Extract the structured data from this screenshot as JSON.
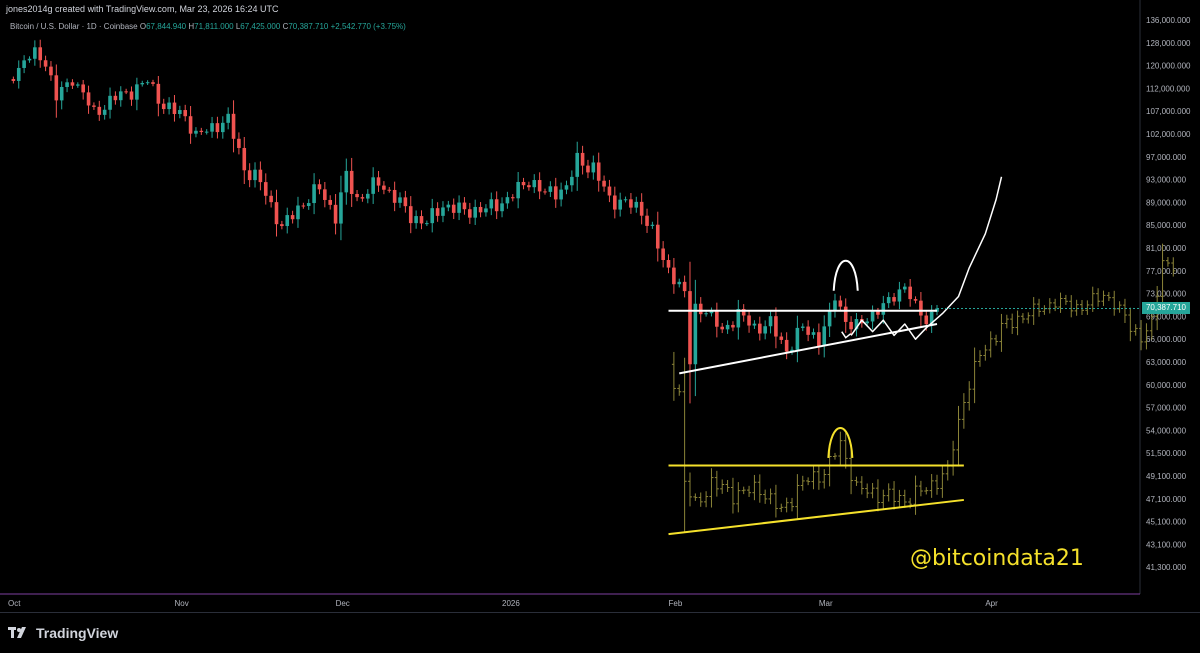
{
  "header": {
    "creator": "jones2014g created with TradingView.com, Mar 23, 2026 16:24 UTC",
    "symbol": "Bitcoin / U.S. Dollar · 1D · Coinbase",
    "open_label": "O",
    "open": "67,844.940",
    "high_label": "H",
    "high": "71,811.000",
    "low_label": "L",
    "low": "67,425.000",
    "close_label": "C",
    "close": "70,387.710",
    "change": "+2,542.770 (+3.75%)"
  },
  "price_tag": "70,387.710",
  "watermark": "@bitcoindata21",
  "footer": {
    "brand": "TradingView"
  },
  "colors": {
    "up": "#26a69a",
    "down": "#ef5350",
    "overlay": "#8b8438",
    "annotation_yellow": "#f5e12b",
    "background": "#000000"
  },
  "chart_data": {
    "type": "candlestick",
    "title": "Bitcoin / U.S. Dollar · 1D · Coinbase",
    "y_ticks": [
      "136,000.000",
      "128,000.000",
      "120,000.000",
      "112,000.000",
      "107,000.000",
      "102,000.000",
      "97,000.000",
      "93,000.000",
      "89,000.000",
      "85,000.000",
      "81,000.000",
      "77,000.000",
      "73,000.000",
      "69,000.000",
      "66,000.000",
      "63,000.000",
      "60,000.000",
      "57,000.000",
      "54,000.000",
      "51,500.000",
      "49,100.000",
      "47,100.000",
      "45,100.000",
      "43,100.000",
      "41,300.000"
    ],
    "x_ticks": [
      "Oct",
      "Nov",
      "Dec",
      "2026",
      "Feb",
      "Mar",
      "Apr"
    ],
    "price_path": [
      [
        "2025-10-01",
        114000
      ],
      [
        "2025-10-04",
        121500
      ],
      [
        "2025-10-06",
        124500
      ],
      [
        "2025-10-08",
        121000
      ],
      [
        "2025-10-10",
        110000
      ],
      [
        "2025-10-13",
        115000
      ],
      [
        "2025-10-17",
        106500
      ],
      [
        "2025-10-21",
        110000
      ],
      [
        "2025-10-24",
        111500
      ],
      [
        "2025-10-27",
        114500
      ],
      [
        "2025-10-30",
        108000
      ],
      [
        "2025-11-03",
        106000
      ],
      [
        "2025-11-05",
        101500
      ],
      [
        "2025-11-08",
        103500
      ],
      [
        "2025-11-11",
        105000
      ],
      [
        "2025-11-14",
        95000
      ],
      [
        "2025-11-17",
        92500
      ],
      [
        "2025-11-21",
        84500
      ],
      [
        "2025-11-24",
        88000
      ],
      [
        "2025-11-28",
        91500
      ],
      [
        "2025-12-01",
        86500
      ],
      [
        "2025-12-03",
        93500
      ],
      [
        "2025-12-05",
        89500
      ],
      [
        "2025-12-09",
        92500
      ],
      [
        "2025-12-12",
        90000
      ],
      [
        "2025-12-15",
        86500
      ],
      [
        "2025-12-18",
        85500
      ],
      [
        "2025-12-21",
        88500
      ],
      [
        "2025-12-25",
        87500
      ],
      [
        "2025-12-29",
        87800
      ],
      [
        "2026-01-02",
        89500
      ],
      [
        "2026-01-06",
        93000
      ],
      [
        "2026-01-09",
        90500
      ],
      [
        "2026-01-13",
        91500
      ],
      [
        "2026-01-15",
        96500
      ],
      [
        "2026-01-18",
        95000
      ],
      [
        "2026-01-21",
        89500
      ],
      [
        "2026-01-24",
        89000
      ],
      [
        "2026-01-27",
        87500
      ],
      [
        "2026-01-29",
        84000
      ],
      [
        "2026-01-31",
        78500
      ],
      [
        "2026-02-02",
        76000
      ],
      [
        "2026-02-04",
        73000
      ],
      [
        "2026-02-05",
        63000
      ],
      [
        "2026-02-06",
        70500
      ],
      [
        "2026-02-08",
        70000
      ],
      [
        "2026-02-11",
        67000
      ],
      [
        "2026-02-14",
        69500
      ],
      [
        "2026-02-17",
        67500
      ],
      [
        "2026-02-20",
        68000
      ],
      [
        "2026-02-23",
        64500
      ],
      [
        "2026-02-26",
        67500
      ],
      [
        "2026-03-01",
        66000
      ],
      [
        "2026-03-03",
        69000
      ],
      [
        "2026-03-04",
        72500
      ],
      [
        "2026-03-06",
        68500
      ],
      [
        "2026-03-08",
        67500
      ],
      [
        "2026-03-11",
        69500
      ],
      [
        "2026-03-14",
        71500
      ],
      [
        "2026-03-17",
        74500
      ],
      [
        "2026-03-19",
        70500
      ],
      [
        "2026-03-21",
        68500
      ],
      [
        "2026-03-23",
        70387.71
      ]
    ],
    "overlay_fractal_path": [
      [
        "2026-02-01",
        62000
      ],
      [
        "2026-02-03",
        59000
      ],
      [
        "2026-02-04",
        48500
      ],
      [
        "2026-02-06",
        46500
      ],
      [
        "2026-02-09",
        48500
      ],
      [
        "2026-02-13",
        47500
      ],
      [
        "2026-02-18",
        48000
      ],
      [
        "2026-02-22",
        46000
      ],
      [
        "2026-02-26",
        48500
      ],
      [
        "2026-03-02",
        49500
      ],
      [
        "2026-03-05",
        52500
      ],
      [
        "2026-03-08",
        48000
      ],
      [
        "2026-03-12",
        47500
      ],
      [
        "2026-03-17",
        47000
      ],
      [
        "2026-03-21",
        48000
      ],
      [
        "2026-03-25",
        49500
      ],
      [
        "2026-03-28",
        58000
      ],
      [
        "2026-03-31",
        64000
      ],
      [
        "2026-04-04",
        67500
      ],
      [
        "2026-04-09",
        69500
      ],
      [
        "2026-04-14",
        71500
      ],
      [
        "2026-04-19",
        70500
      ],
      [
        "2026-04-23",
        73000
      ],
      [
        "2026-04-27",
        69000
      ],
      [
        "2026-04-30",
        66000
      ],
      [
        "2026-05-02",
        68000
      ],
      [
        "2026-05-04",
        79000
      ],
      [
        "2026-05-06",
        77000
      ]
    ],
    "annotations": [
      {
        "kind": "horizontal_line",
        "color": "white",
        "price": 70000,
        "from": "2026-02-01",
        "to": "2026-03-23"
      },
      {
        "kind": "trend_line",
        "color": "white",
        "from": [
          "2026-02-03",
          61500
        ],
        "to": [
          "2026-03-23",
          68000
        ]
      },
      {
        "kind": "arch",
        "color": "white",
        "at": "2026-03-06",
        "price": 73500
      },
      {
        "kind": "horizontal_line",
        "color": "yellow",
        "price": 50200,
        "from": "2026-02-01",
        "to": "2026-03-28"
      },
      {
        "kind": "trend_line",
        "color": "yellow",
        "from": [
          "2026-02-01",
          44000
        ],
        "to": [
          "2026-03-28",
          47000
        ]
      },
      {
        "kind": "arch",
        "color": "yellow",
        "at": "2026-03-05",
        "price": 51000
      },
      {
        "kind": "freehand_projection",
        "color": "white"
      }
    ]
  }
}
